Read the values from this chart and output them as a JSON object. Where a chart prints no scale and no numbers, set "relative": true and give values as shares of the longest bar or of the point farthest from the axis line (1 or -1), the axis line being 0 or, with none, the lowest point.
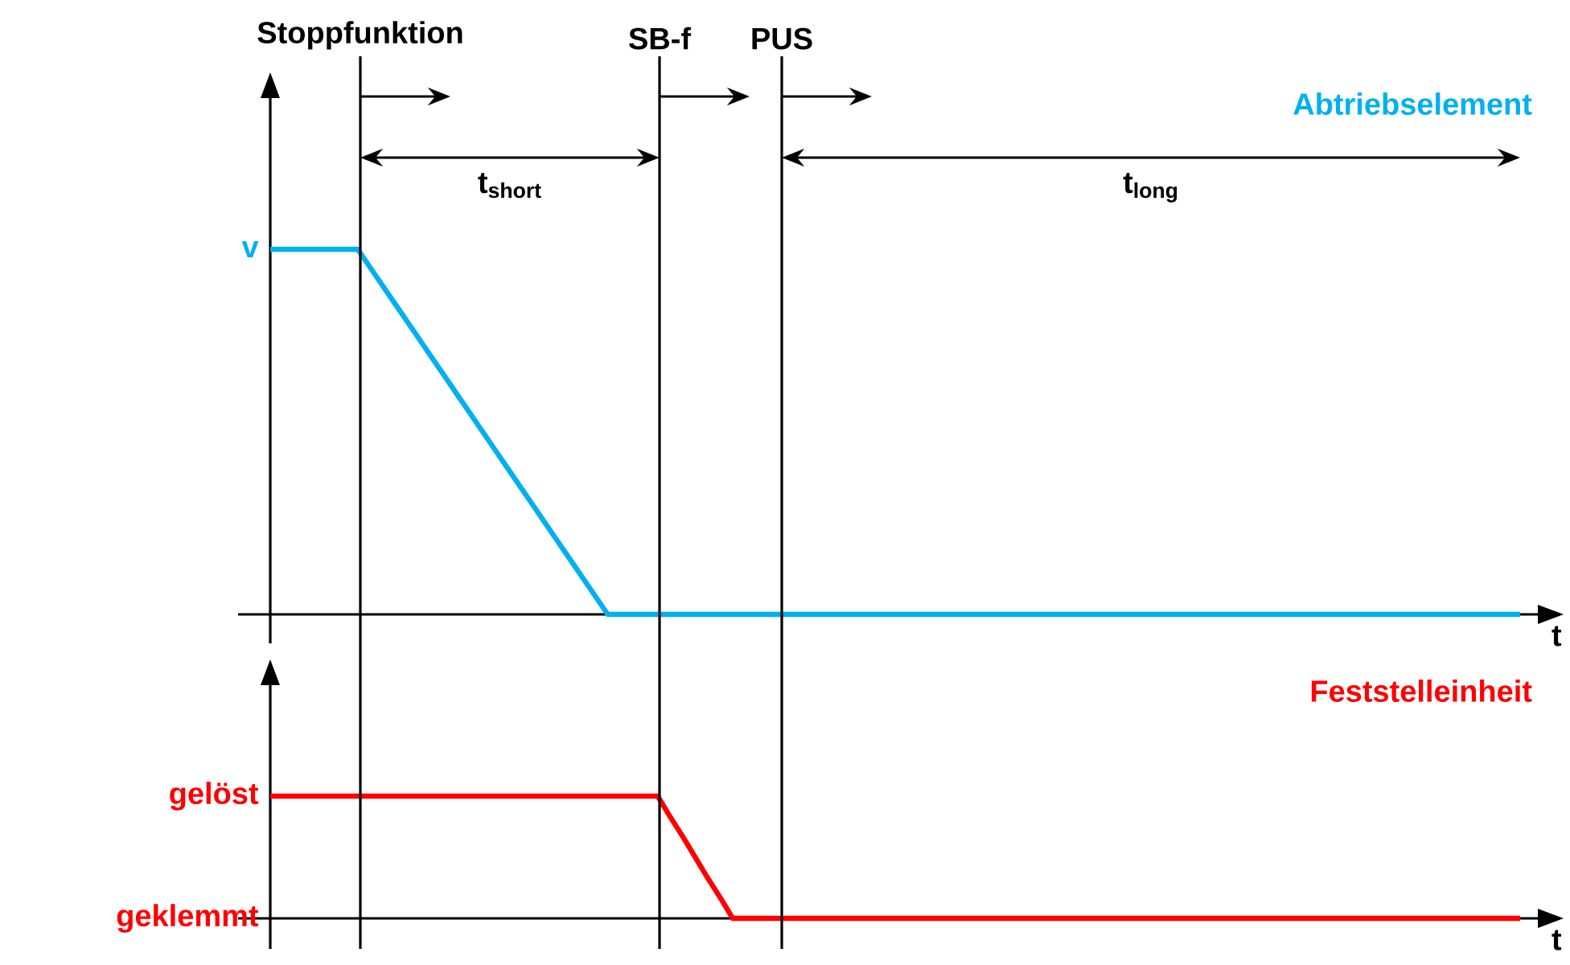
{
  "chart_data": [
    {
      "type": "line",
      "xlabel": "t",
      "relative": true,
      "categories": [
        null,
        null,
        null,
        null,
        null,
        null,
        null,
        null,
        null,
        null,
        null,
        null,
        null,
        null,
        null,
        null,
        null,
        null,
        null,
        null,
        null,
        null,
        null,
        null,
        null,
        null,
        null,
        null,
        null,
        null,
        null,
        null,
        null,
        null,
        null,
        null,
        null,
        null,
        null,
        null,
        null,
        null,
        null,
        null,
        null,
        null,
        null,
        null,
        null,
        null,
        null,
        null,
        null,
        null,
        null,
        null,
        null,
        null,
        null,
        null,
        null,
        null,
        null,
        null,
        null,
        null,
        null,
        null,
        null,
        null,
        null,
        null,
        null,
        null,
        null,
        null,
        null,
        null,
        null,
        null,
        null,
        null,
        null,
        null,
        null,
        null,
        null,
        null,
        null,
        null,
        null,
        null,
        null,
        null,
        null,
        null,
        null,
        null,
        null,
        null,
        null
      ],
      "series": [
        {
          "name": "Abtriebselement",
          "color": "#00b0f0",
          "values": [
            1,
            1,
            1,
            1,
            1,
            1,
            1,
            1,
            0.95,
            0.9,
            0.85,
            0.8,
            0.75,
            0.7,
            0.65,
            0.6,
            0.55,
            0.5,
            0.45,
            0.4,
            0.35,
            0.3,
            0.25,
            0.2,
            0.15,
            0.1,
            0.05,
            0,
            0,
            0,
            0,
            0,
            0,
            0,
            0,
            0,
            0,
            0,
            0,
            0,
            0,
            0,
            0,
            0,
            0,
            0,
            0,
            0,
            0,
            0,
            0,
            0,
            0,
            0,
            0,
            0,
            0,
            0,
            0,
            0,
            0,
            0,
            0,
            0,
            0,
            0,
            0,
            0,
            0,
            0,
            0,
            0,
            0,
            0,
            0,
            0,
            0,
            0,
            0,
            0,
            0,
            0,
            0,
            0,
            0,
            0,
            0,
            0,
            0,
            0,
            0,
            0,
            0,
            0,
            0,
            0,
            0,
            0,
            0,
            0,
            0
          ]
        }
      ],
      "annotations": [
        "Stoppfunktion",
        "SB-f",
        "PUS",
        "v",
        "t$_{short}$",
        "t$_{long}$"
      ]
    },
    {
      "type": "line",
      "xlabel": "t",
      "relative": true,
      "categories": [
        null,
        null,
        null,
        null,
        null,
        null,
        null,
        null,
        null,
        null,
        null,
        null,
        null,
        null,
        null,
        null,
        null,
        null,
        null,
        null,
        null,
        null,
        null,
        null,
        null,
        null,
        null,
        null,
        null,
        null,
        null,
        null,
        null,
        null,
        null,
        null,
        null,
        null,
        null,
        null,
        null,
        null,
        null,
        null,
        null,
        null,
        null,
        null,
        null,
        null,
        null,
        null,
        null,
        null,
        null,
        null,
        null,
        null,
        null,
        null,
        null,
        null,
        null,
        null,
        null,
        null,
        null,
        null,
        null,
        null,
        null,
        null,
        null,
        null,
        null,
        null,
        null,
        null,
        null,
        null,
        null,
        null,
        null,
        null,
        null,
        null,
        null,
        null,
        null,
        null,
        null,
        null,
        null,
        null,
        null,
        null,
        null,
        null,
        null,
        null,
        null
      ],
      "series": [
        {
          "name": "Feststelleinheit",
          "color": "#ff0000",
          "values": [
            1,
            1,
            1,
            1,
            1,
            1,
            1,
            1,
            1,
            1,
            1,
            1,
            1,
            1,
            1,
            1,
            1,
            1,
            1,
            1,
            1,
            1,
            1,
            1,
            1,
            1,
            1,
            1,
            1,
            1,
            1,
            1,
            0.83,
            0.67,
            0.5,
            0.33,
            0.17,
            0,
            0,
            0,
            0,
            0,
            0,
            0,
            0,
            0,
            0,
            0,
            0,
            0,
            0,
            0,
            0,
            0,
            0,
            0,
            0,
            0,
            0,
            0,
            0,
            0,
            0,
            0,
            0,
            0,
            0,
            0,
            0,
            0,
            0,
            0,
            0,
            0,
            0,
            0,
            0,
            0,
            0,
            0,
            0,
            0,
            0,
            0,
            0,
            0,
            0,
            0,
            0,
            0,
            0,
            0,
            0,
            0,
            0,
            0,
            0,
            0,
            0,
            0,
            0
          ]
        }
      ],
      "annotations": [
        "gelöst",
        "geklemmt"
      ]
    }
  ]
}
